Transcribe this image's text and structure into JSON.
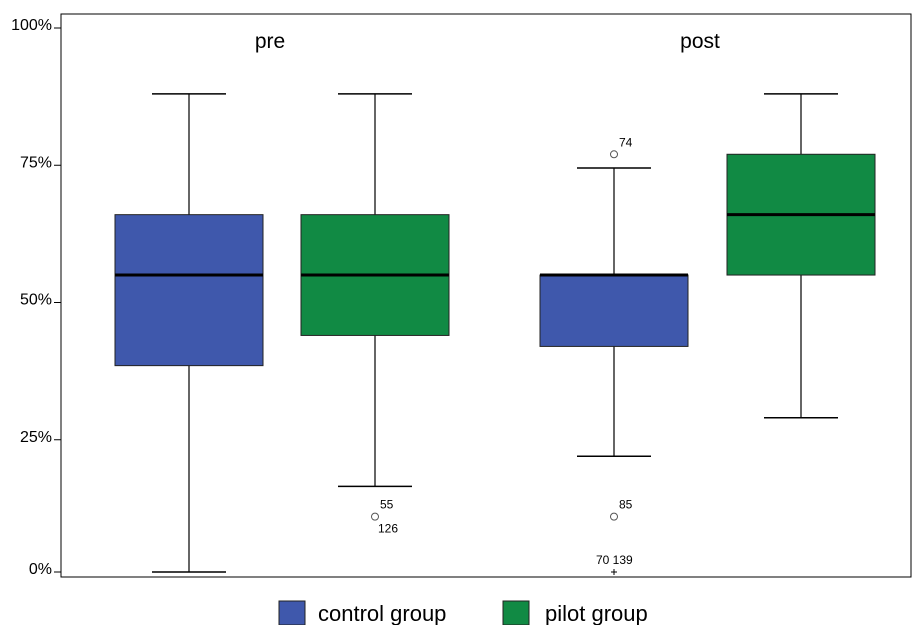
{
  "chart_data": {
    "type": "boxplot",
    "ylim": [
      0,
      100
    ],
    "y_ticks": [
      {
        "value": 0,
        "label": "0%"
      },
      {
        "value": 25,
        "label": "25%"
      },
      {
        "value": 50,
        "label": "50%"
      },
      {
        "value": 75,
        "label": "75%"
      },
      {
        "value": 100,
        "label": "100%"
      }
    ],
    "categories": [
      "pre",
      "post"
    ],
    "legend_position": "bottom",
    "series": [
      {
        "name": "control group",
        "color": "#3f58ac",
        "boxes": [
          {
            "category": "pre",
            "whisker_low": 0,
            "q1": 38.5,
            "median": 55,
            "q3": 66,
            "whisker_high": 88,
            "outliers": []
          },
          {
            "category": "post",
            "whisker_low": 22,
            "q1": 42,
            "median": 55,
            "q3": 55,
            "whisker_high": 74.5,
            "outliers": [
              {
                "value": 77,
                "marker": "circle",
                "label": "74"
              },
              {
                "value": 11,
                "marker": "circle",
                "label": "85"
              },
              {
                "value": 0,
                "marker": "cross",
                "label": "70 139"
              }
            ]
          }
        ]
      },
      {
        "name": "pilot group",
        "color": "#118a44",
        "boxes": [
          {
            "category": "pre",
            "whisker_low": 16.5,
            "q1": 44,
            "median": 55,
            "q3": 66,
            "whisker_high": 88,
            "outliers": [
              {
                "value": 11,
                "marker": "circle",
                "label": "55",
                "label2": "126"
              }
            ]
          },
          {
            "category": "post",
            "whisker_low": 29,
            "q1": 55,
            "median": 66,
            "q3": 77,
            "whisker_high": 88,
            "outliers": []
          }
        ]
      }
    ]
  }
}
